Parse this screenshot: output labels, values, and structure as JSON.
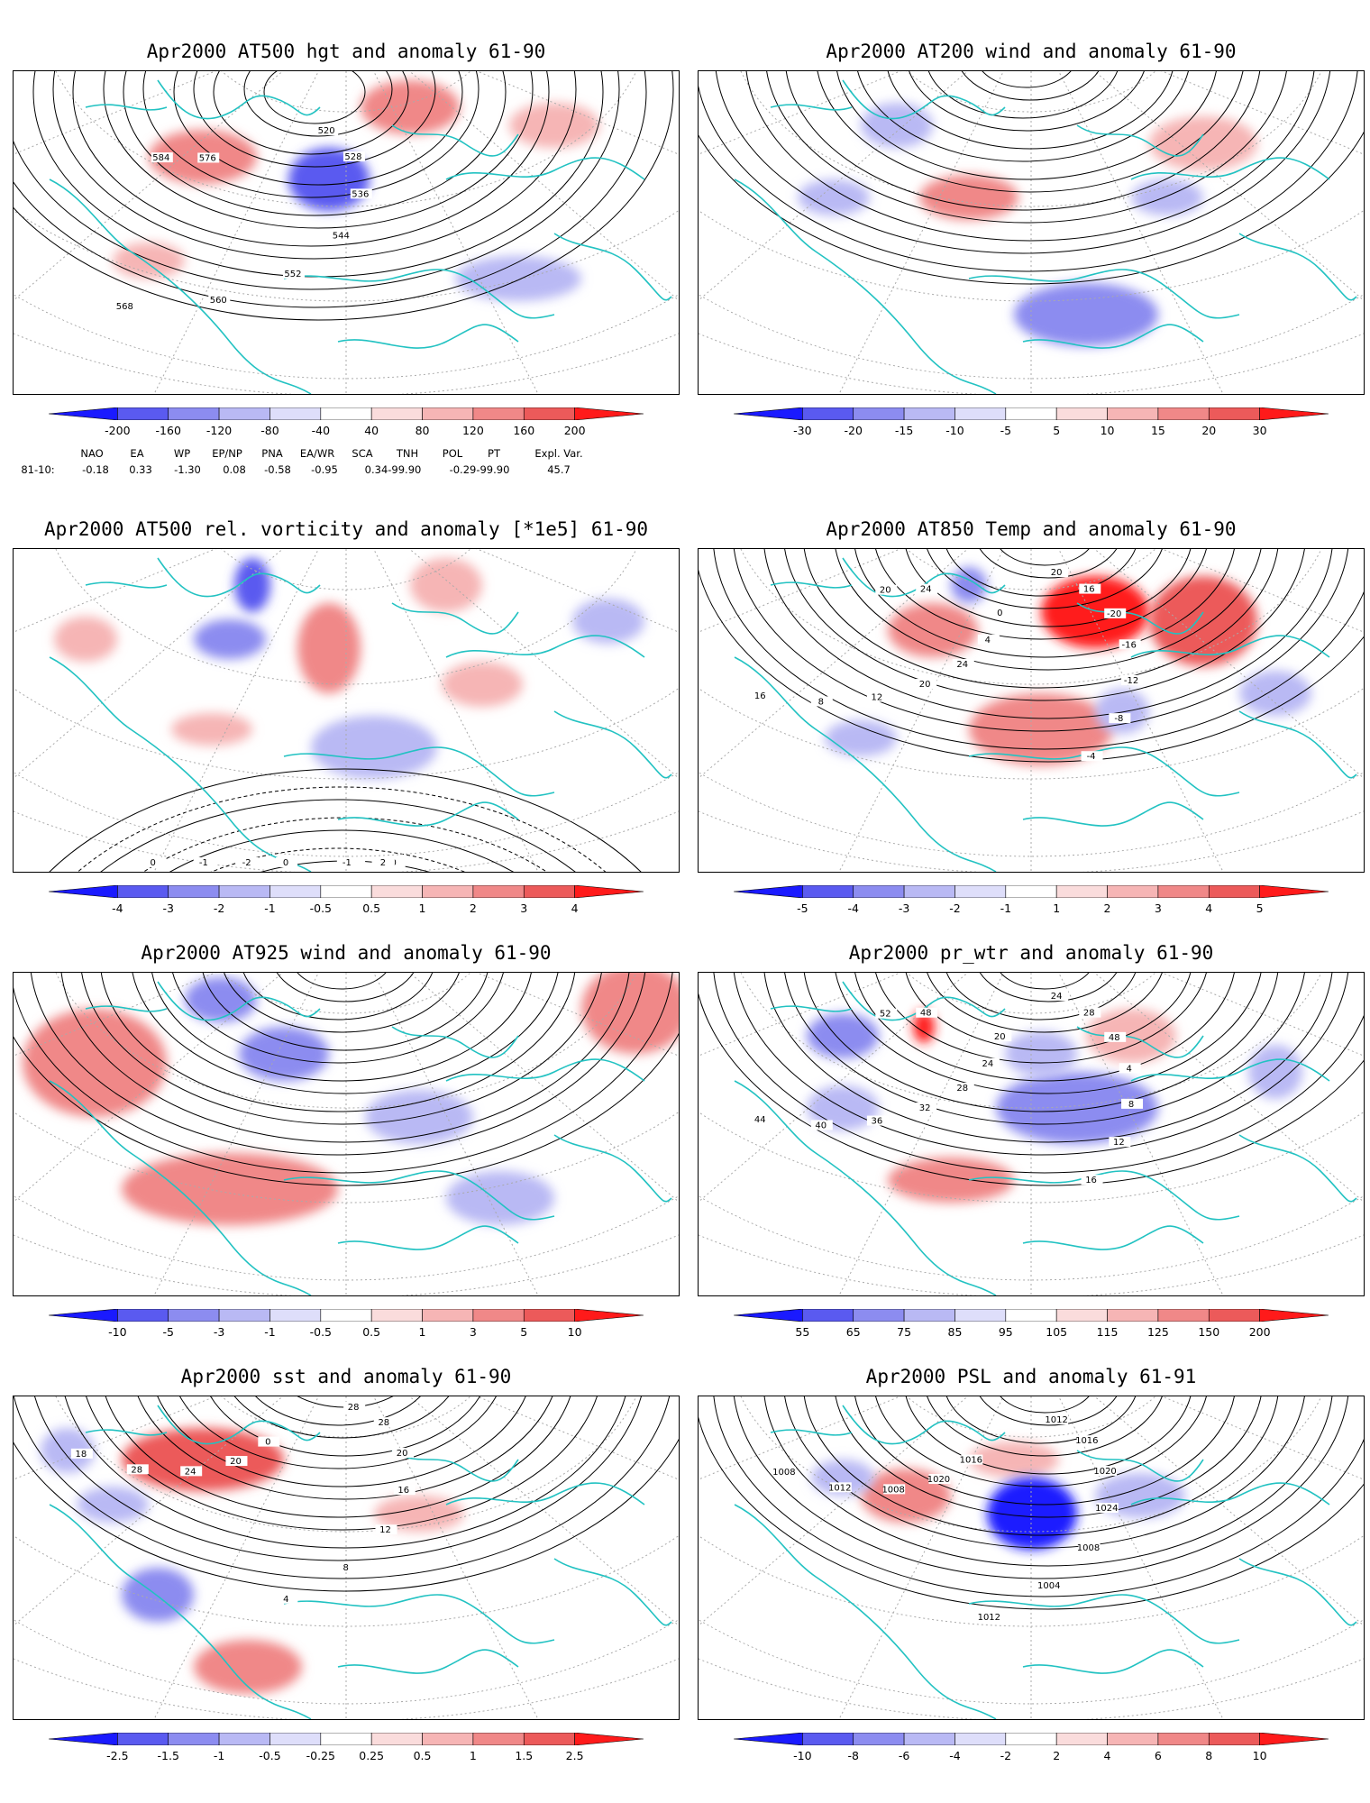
{
  "panels": [
    {
      "id": "hgt500",
      "title": "Apr2000 AT500 hgt and anomaly 61-90",
      "colorbar": [
        "-200",
        "-160",
        "-120",
        "-80",
        "-40",
        "40",
        "80",
        "120",
        "160",
        "200"
      ],
      "contour_labels": [
        "520",
        "528",
        "536",
        "544",
        "552",
        "560",
        "568",
        "576",
        "584"
      ]
    },
    {
      "id": "wind200",
      "title": "Apr2000 AT200 wind and anomaly 61-90",
      "colorbar": [
        "-30",
        "-20",
        "-15",
        "-10",
        "-5",
        "5",
        "10",
        "15",
        "20",
        "30"
      ],
      "contour_labels": []
    },
    {
      "id": "vort500",
      "title": "Apr2000 AT500 rel. vorticity and anomaly [*1e5] 61-90",
      "colorbar": [
        "-4",
        "-3",
        "-2",
        "-1",
        "-0.5",
        "0.5",
        "1",
        "2",
        "3",
        "4"
      ],
      "contour_labels": [
        "-1",
        "-2",
        "0",
        "2",
        "-1",
        "0",
        "1",
        "-2",
        "-1",
        "0"
      ]
    },
    {
      "id": "temp850",
      "title": "Apr2000 AT850 Temp and anomaly 61-90",
      "colorbar": [
        "-5",
        "-4",
        "-3",
        "-2",
        "-1",
        "1",
        "2",
        "3",
        "4",
        "5"
      ],
      "contour_labels": [
        "20",
        "16",
        "-20",
        "-16",
        "-12",
        "-8",
        "-4",
        "0",
        "4",
        "24",
        "20",
        "12",
        "8",
        "16",
        "24",
        "20"
      ]
    },
    {
      "id": "wind925",
      "title": "Apr2000 AT925 wind and anomaly 61-90",
      "colorbar": [
        "-10",
        "-5",
        "-3",
        "-1",
        "-0.5",
        "0.5",
        "1",
        "3",
        "5",
        "10"
      ],
      "contour_labels": []
    },
    {
      "id": "prwtr",
      "title": "Apr2000 pr_wtr and anomaly 61-90",
      "colorbar": [
        "55",
        "65",
        "75",
        "85",
        "95",
        "105",
        "115",
        "125",
        "150",
        "200"
      ],
      "contour_labels": [
        "24",
        "28",
        "48",
        "4",
        "8",
        "12",
        "16",
        "20",
        "24",
        "28",
        "32",
        "36",
        "40",
        "44",
        "48",
        "52"
      ]
    },
    {
      "id": "sst",
      "title": "Apr2000 sst and anomaly 61-90",
      "colorbar": [
        "-2.5",
        "-1.5",
        "-1",
        "-0.5",
        "-0.25",
        "0.25",
        "0.5",
        "1",
        "1.5",
        "2.5"
      ],
      "contour_labels": [
        "28",
        "28",
        "20",
        "16",
        "12",
        "8",
        "4",
        "0",
        "20",
        "24",
        "28",
        "18"
      ]
    },
    {
      "id": "psl",
      "title": "Apr2000 PSL and anomaly 61-91",
      "colorbar": [
        "-10",
        "-8",
        "-6",
        "-4",
        "-2",
        "2",
        "4",
        "6",
        "8",
        "10"
      ],
      "contour_labels": [
        "1012",
        "1016",
        "1020",
        "1024",
        "1008",
        "1004",
        "1012",
        "1016",
        "1020",
        "1008",
        "1012",
        "1008"
      ]
    }
  ],
  "index_table": {
    "headers": [
      "NAO",
      "EA",
      "WP",
      "EP/NP",
      "PNA",
      "EA/WR",
      "SCA",
      "TNH",
      "POL",
      "PT",
      "Expl. Var."
    ],
    "row_label": "81-10:",
    "values": [
      "-0.18",
      "0.33",
      "-1.30",
      "0.08",
      "-0.58",
      "-0.95",
      "0.34-99.90",
      "-0.29-99.90",
      "45.7"
    ]
  },
  "colors": {
    "coast": "#22c2c2",
    "neg_scale": [
      "#1a1aff",
      "#5a5af0",
      "#8c8cf0",
      "#b9b9f4",
      "#dedefa"
    ],
    "pos_scale": [
      "#fadcdc",
      "#f6b5b5",
      "#f08888",
      "#ec5a5a",
      "#ff1a1a"
    ]
  }
}
